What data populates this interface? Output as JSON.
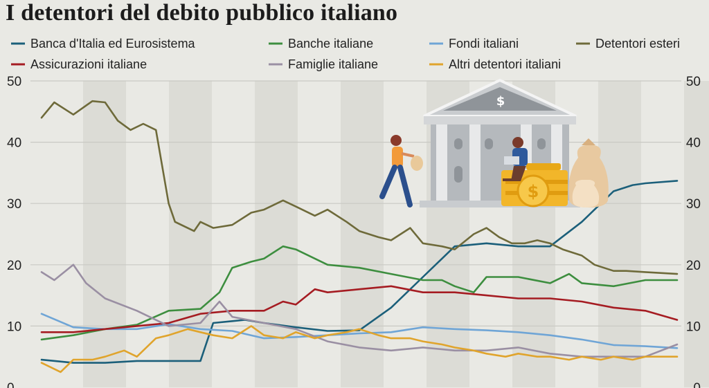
{
  "title": "I detentori del debito pubblico italiano",
  "chart_data": {
    "type": "line",
    "x_range": [
      0,
      100
    ],
    "ylim": [
      0,
      50
    ],
    "y_ticks": [
      "0",
      "10",
      "20",
      "30",
      "40",
      "50"
    ],
    "grid": true,
    "legend_position": "top",
    "series": [
      {
        "name": "Banca d'Italia ed Eurosistema",
        "color": "#1b5f7a",
        "x": [
          0,
          5,
          10,
          15,
          20,
          25,
          27,
          30,
          32,
          35,
          40,
          45,
          50,
          55,
          60,
          65,
          70,
          75,
          80,
          85,
          88,
          90,
          93,
          95,
          100
        ],
        "values": [
          4.5,
          4,
          4,
          4.3,
          4.3,
          4.3,
          10.5,
          10.8,
          11,
          10.5,
          9.8,
          9.2,
          9.3,
          13,
          18,
          23,
          23.5,
          23,
          23,
          27,
          30,
          32,
          33,
          33.3,
          33.7
        ]
      },
      {
        "name": "Banche italiane",
        "color": "#3d8e3f",
        "x": [
          0,
          5,
          10,
          15,
          20,
          25,
          28,
          30,
          33,
          35,
          38,
          40,
          45,
          50,
          55,
          60,
          63,
          65,
          68,
          70,
          75,
          80,
          83,
          85,
          90,
          95,
          100
        ],
        "values": [
          7.8,
          8.5,
          9.5,
          10.2,
          12.5,
          12.8,
          15.5,
          19.5,
          20.5,
          21,
          23,
          22.5,
          20,
          19.5,
          18.5,
          17.5,
          17.5,
          16.5,
          15.5,
          18,
          18,
          17,
          18.5,
          17,
          16.5,
          17.5,
          17.5
        ]
      },
      {
        "name": "Fondi italiani",
        "color": "#6fa5d6",
        "x": [
          0,
          5,
          10,
          15,
          20,
          25,
          30,
          35,
          40,
          45,
          50,
          55,
          60,
          65,
          70,
          75,
          80,
          85,
          90,
          95,
          100
        ],
        "values": [
          12,
          9.8,
          9.5,
          9.5,
          10.3,
          9.5,
          9.2,
          8,
          8.2,
          8.5,
          8.8,
          9,
          9.8,
          9.5,
          9.3,
          9,
          8.5,
          7.8,
          6.9,
          6.7,
          6.4
        ]
      },
      {
        "name": "Detentori esteri",
        "color": "#6e6a3a",
        "x": [
          0,
          2,
          5,
          8,
          10,
          12,
          14,
          16,
          18,
          20,
          21,
          24,
          25,
          27,
          30,
          33,
          35,
          38,
          40,
          43,
          45,
          48,
          50,
          53,
          55,
          58,
          60,
          63,
          65,
          68,
          70,
          72,
          74,
          76,
          78,
          80,
          82,
          85,
          87,
          90,
          92,
          95,
          100
        ],
        "values": [
          44,
          46.5,
          44.5,
          46.7,
          46.5,
          43.5,
          42,
          43,
          42,
          30,
          27,
          25.5,
          27,
          26,
          26.5,
          28.5,
          29,
          30.5,
          29.5,
          28,
          29,
          27,
          25.5,
          24.5,
          24,
          26,
          23.5,
          23,
          22.5,
          25,
          26,
          24.5,
          23.5,
          23.5,
          24,
          23.5,
          22.5,
          21.5,
          20,
          19,
          19,
          18.8,
          18.5
        ]
      },
      {
        "name": "Assicurazioni italiane",
        "color": "#a51c22",
        "x": [
          0,
          5,
          10,
          15,
          20,
          25,
          30,
          35,
          38,
          40,
          43,
          45,
          50,
          55,
          60,
          65,
          70,
          75,
          80,
          85,
          90,
          95,
          100
        ],
        "values": [
          9,
          9,
          9.5,
          10,
          10.5,
          12,
          12.5,
          12.5,
          14,
          13.5,
          16,
          15.5,
          16,
          16.5,
          15.5,
          15.5,
          15,
          14.5,
          14.5,
          14,
          13,
          12.5,
          11
        ]
      },
      {
        "name": "Famiglie italiane",
        "color": "#9a8fa3",
        "x": [
          0,
          2,
          5,
          7,
          10,
          15,
          20,
          25,
          28,
          30,
          35,
          40,
          45,
          50,
          55,
          60,
          65,
          70,
          75,
          80,
          85,
          90,
          95,
          100
        ],
        "values": [
          18.8,
          17.5,
          20,
          17,
          14.5,
          12.5,
          10,
          10.5,
          14,
          11.5,
          10.5,
          9.5,
          7.5,
          6.5,
          6,
          6.5,
          6,
          6,
          6.5,
          5.5,
          5,
          5,
          5,
          7
        ]
      },
      {
        "name": "Altri detentori italiani",
        "color": "#e0a42c",
        "x": [
          0,
          3,
          5,
          8,
          10,
          13,
          15,
          18,
          20,
          23,
          25,
          27,
          30,
          33,
          35,
          38,
          40,
          43,
          45,
          48,
          50,
          53,
          55,
          58,
          60,
          63,
          65,
          68,
          70,
          73,
          75,
          78,
          80,
          83,
          85,
          88,
          90,
          93,
          95,
          98,
          100
        ],
        "values": [
          4,
          2.5,
          4.5,
          4.5,
          5,
          6,
          5,
          8,
          8.5,
          9.5,
          9,
          8.5,
          8,
          10,
          8.5,
          8,
          9,
          8,
          8.5,
          9,
          9.5,
          8.5,
          8,
          8,
          7.5,
          7,
          6.5,
          6,
          5.5,
          5,
          5.5,
          5,
          5,
          4.5,
          5,
          4.5,
          5,
          4.5,
          5,
          5,
          5
        ]
      }
    ]
  },
  "illustration": {
    "icons": [
      "bank-icon",
      "dollar-icon",
      "woman-running-icon",
      "woman-laptop-icon",
      "coins-icon",
      "money-bag-icon"
    ]
  }
}
